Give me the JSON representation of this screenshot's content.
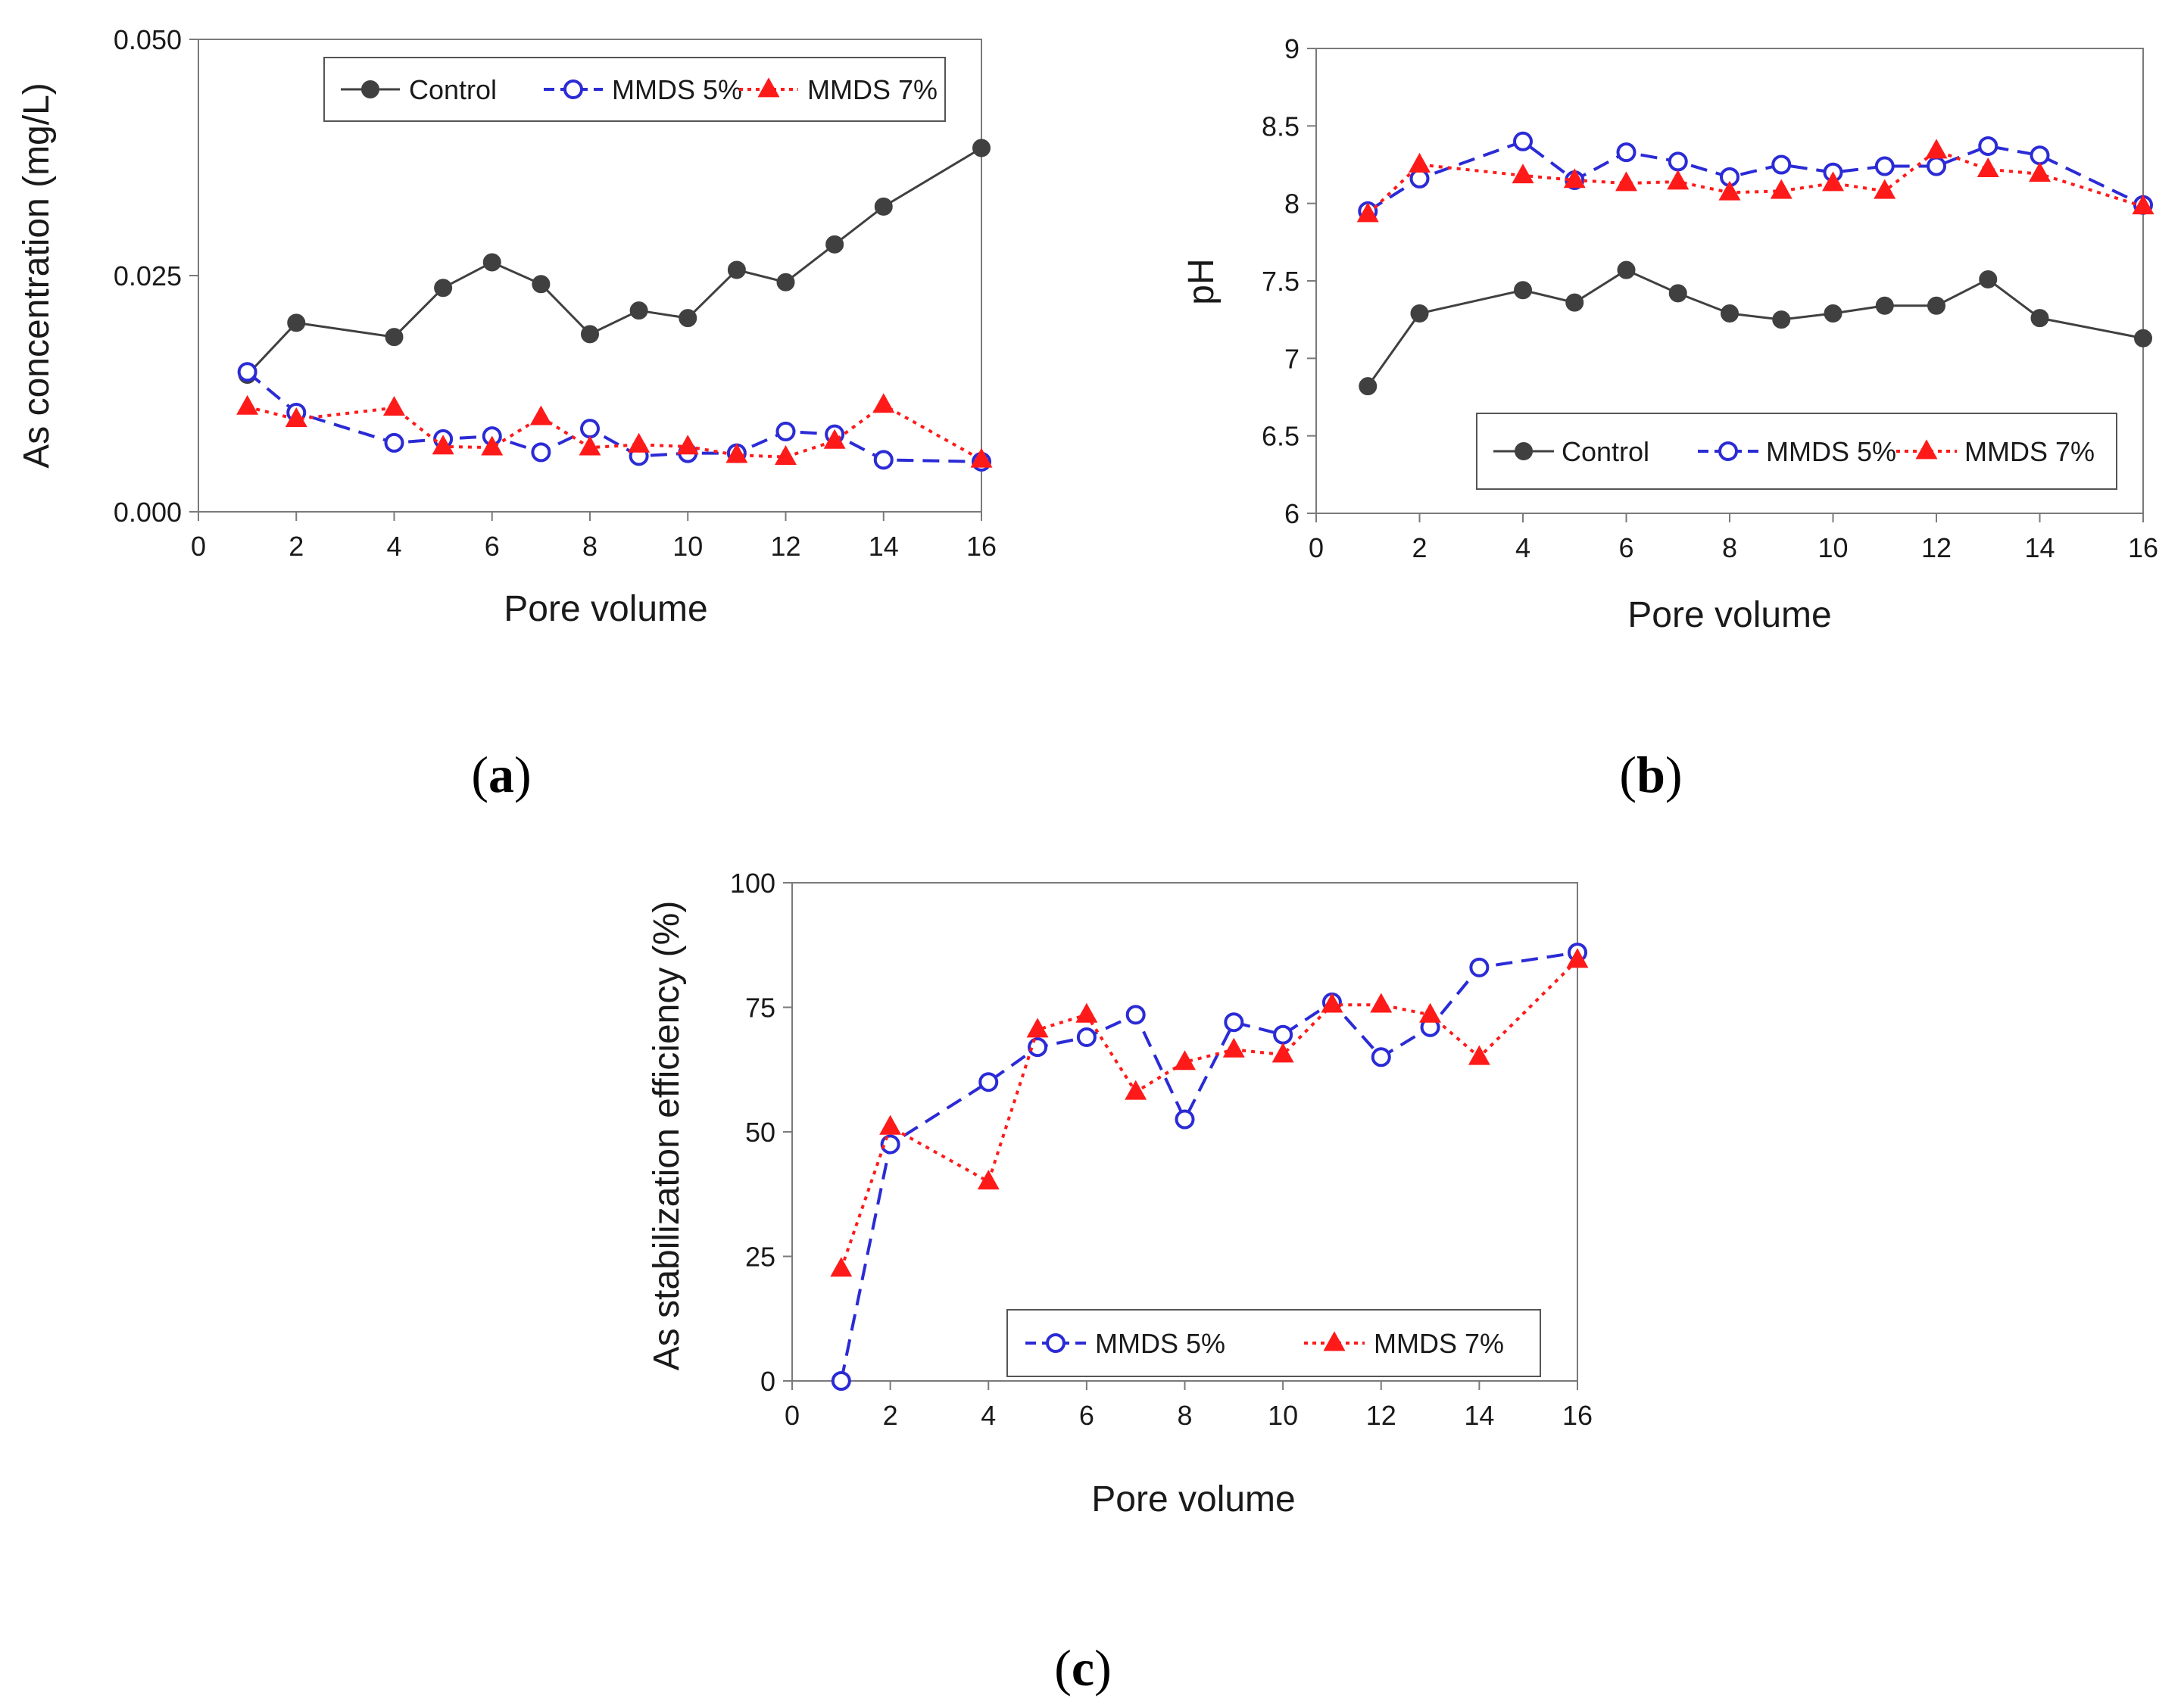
{
  "chart_data": [
    {
      "type": "line",
      "panel_label": "a",
      "xlabel": "Pore volume",
      "ylabel": "As concentration (mg/L)",
      "xlim": [
        0,
        16
      ],
      "ylim": [
        0,
        0.05
      ],
      "xticks": [
        0,
        2,
        4,
        6,
        8,
        10,
        12,
        14,
        16
      ],
      "yticks": [
        0,
        0.025,
        0.05
      ],
      "ytick_labels": [
        "0.000",
        "0.025",
        "0.050"
      ],
      "legend_position": "top-right",
      "series": [
        {
          "name": "Control",
          "style": "control",
          "x": [
            1,
            2,
            4,
            5,
            6,
            7,
            8,
            9,
            10,
            11,
            12,
            13,
            14,
            16
          ],
          "y": [
            0.0145,
            0.02,
            0.0185,
            0.0237,
            0.0264,
            0.0241,
            0.0188,
            0.0213,
            0.0205,
            0.0256,
            0.0243,
            0.0283,
            0.0323,
            0.0385
          ]
        },
        {
          "name": "MMDS 5%",
          "style": "mmds5",
          "x": [
            1,
            2,
            4,
            5,
            6,
            7,
            8,
            9,
            10,
            11,
            12,
            13,
            14,
            16
          ],
          "y": [
            0.0148,
            0.0105,
            0.0073,
            0.0077,
            0.008,
            0.0063,
            0.0088,
            0.0059,
            0.0062,
            0.0062,
            0.0085,
            0.0082,
            0.0055,
            0.0053
          ]
        },
        {
          "name": "MMDS 7%",
          "style": "mmds7",
          "x": [
            1,
            2,
            4,
            5,
            6,
            7,
            8,
            9,
            10,
            11,
            12,
            13,
            14,
            16
          ],
          "y": [
            0.0111,
            0.0098,
            0.011,
            0.0069,
            0.0068,
            0.01,
            0.0068,
            0.0071,
            0.0069,
            0.006,
            0.0058,
            0.0075,
            0.0113,
            0.0055
          ]
        }
      ]
    },
    {
      "type": "line",
      "panel_label": "b",
      "xlabel": "Pore volume",
      "ylabel": "pH",
      "xlim": [
        0,
        16
      ],
      "ylim": [
        6,
        9
      ],
      "xticks": [
        0,
        2,
        4,
        6,
        8,
        10,
        12,
        14,
        16
      ],
      "yticks": [
        6,
        6.5,
        7,
        7.5,
        8,
        8.5,
        9
      ],
      "ytick_labels": [
        "6",
        "6.5",
        "7",
        "7.5",
        "8",
        "8.5",
        "9"
      ],
      "legend_position": "bottom-right",
      "series": [
        {
          "name": "Control",
          "style": "control",
          "x": [
            1,
            2,
            4,
            5,
            6,
            7,
            8,
            9,
            10,
            11,
            12,
            13,
            14,
            16
          ],
          "y": [
            6.82,
            7.29,
            7.44,
            7.36,
            7.57,
            7.42,
            7.29,
            7.25,
            7.29,
            7.34,
            7.34,
            7.51,
            7.26,
            7.13
          ]
        },
        {
          "name": "MMDS 5%",
          "style": "mmds5",
          "x": [
            1,
            2,
            4,
            5,
            6,
            7,
            8,
            9,
            10,
            11,
            12,
            13,
            14,
            16
          ],
          "y": [
            7.95,
            8.16,
            8.4,
            8.15,
            8.33,
            8.27,
            8.17,
            8.25,
            8.2,
            8.24,
            8.24,
            8.37,
            8.31,
            7.99
          ]
        },
        {
          "name": "MMDS 7%",
          "style": "mmds7",
          "x": [
            1,
            2,
            4,
            5,
            6,
            7,
            8,
            9,
            10,
            11,
            12,
            13,
            14,
            16
          ],
          "y": [
            7.93,
            8.25,
            8.18,
            8.15,
            8.13,
            8.14,
            8.07,
            8.08,
            8.13,
            8.08,
            8.34,
            8.22,
            8.19,
            7.98
          ]
        }
      ]
    },
    {
      "type": "line",
      "panel_label": "c",
      "xlabel": "Pore volume",
      "ylabel": "As stabilization efficiency (%)",
      "xlim": [
        0,
        16
      ],
      "ylim": [
        0,
        100
      ],
      "xticks": [
        0,
        2,
        4,
        6,
        8,
        10,
        12,
        14,
        16
      ],
      "yticks": [
        0,
        25,
        50,
        75,
        100
      ],
      "ytick_labels": [
        "0",
        "25",
        "50",
        "75",
        "100"
      ],
      "legend_position": "bottom-right",
      "series": [
        {
          "name": "MMDS 5%",
          "style": "mmds5",
          "x": [
            1,
            2,
            4,
            5,
            6,
            7,
            8,
            9,
            10,
            11,
            12,
            13,
            14,
            16
          ],
          "y": [
            0,
            47.5,
            60,
            67,
            69,
            73.5,
            52.5,
            72,
            69.5,
            76,
            65,
            71,
            83,
            86
          ]
        },
        {
          "name": "MMDS 7%",
          "style": "mmds7",
          "x": [
            1,
            2,
            4,
            5,
            6,
            7,
            8,
            9,
            10,
            11,
            12,
            13,
            14,
            16
          ],
          "y": [
            22.5,
            51,
            40,
            70.5,
            73.5,
            58,
            64,
            66.5,
            65.5,
            75.5,
            75.5,
            73.5,
            65,
            84.5
          ]
        }
      ]
    }
  ],
  "styles": {
    "control": {
      "color": "#404040",
      "marker": "filled-circle",
      "dash": "solid"
    },
    "mmds5": {
      "color": "#2b2bd6",
      "marker": "open-circle",
      "dash": "dashed"
    },
    "mmds7": {
      "color": "#ff1a1a",
      "marker": "filled-triangle",
      "dash": "dotted"
    }
  },
  "panel_label_parens": [
    "(",
    ")"
  ]
}
